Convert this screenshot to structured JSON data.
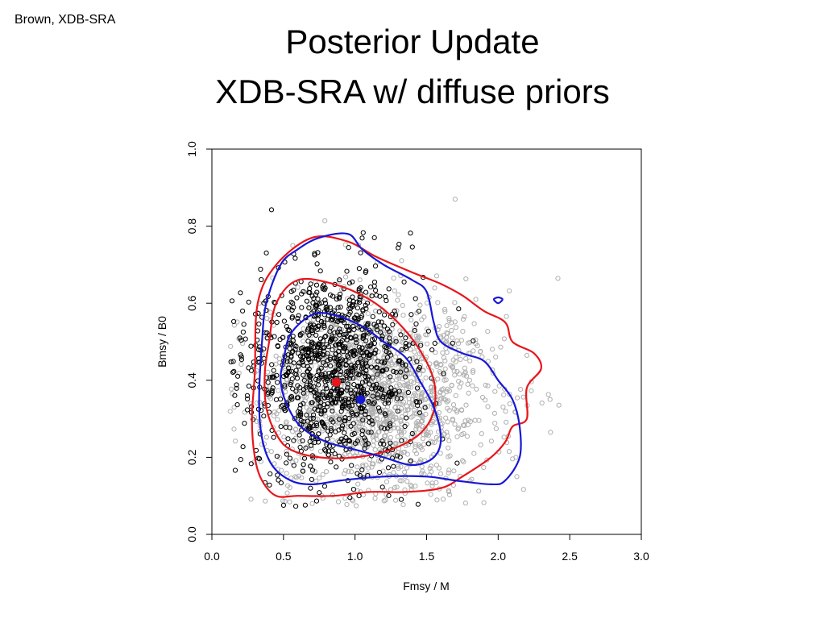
{
  "slide": {
    "corner_label": "Brown, XDB-SRA",
    "title_line1": "Posterior Update",
    "title_line2": "XDB-SRA w/ diffuse priors"
  },
  "chart_data": {
    "type": "scatter",
    "title": "",
    "xlabel": "Fmsy / M",
    "ylabel": "Bmsy / B0",
    "xlim": [
      0.0,
      3.0
    ],
    "ylim": [
      0.0,
      1.0
    ],
    "x_ticks": [
      "0.0",
      "0.5",
      "1.0",
      "1.5",
      "2.0",
      "2.5",
      "3.0"
    ],
    "y_ticks": [
      "0.0",
      "0.2",
      "0.4",
      "0.6",
      "0.8",
      "1.0"
    ],
    "grid": false,
    "legend": "none",
    "colors": {
      "black_points": "#000000",
      "gray_points": "#b0b0b0",
      "red": "#e8151b",
      "blue": "#1717d6"
    },
    "series": [
      {
        "kind": "scatter-cloud",
        "color": "#b0b0b0",
        "center": [
          1.2,
          0.36
        ],
        "spread": [
          0.42,
          0.13
        ],
        "count": 1400
      },
      {
        "kind": "scatter-cloud",
        "color": "#000000",
        "center": [
          0.85,
          0.42
        ],
        "spread": [
          0.3,
          0.13
        ],
        "count": 1100
      },
      {
        "kind": "contour",
        "color": "#e8151b",
        "level": "outer",
        "points": [
          [
            0.3,
            0.42
          ],
          [
            0.32,
            0.6
          ],
          [
            0.45,
            0.7
          ],
          [
            0.7,
            0.77
          ],
          [
            0.95,
            0.76
          ],
          [
            1.15,
            0.72
          ],
          [
            1.4,
            0.68
          ],
          [
            1.6,
            0.65
          ],
          [
            1.75,
            0.62
          ],
          [
            1.9,
            0.58
          ],
          [
            2.05,
            0.55
          ],
          [
            2.1,
            0.5
          ],
          [
            2.25,
            0.47
          ],
          [
            2.3,
            0.43
          ],
          [
            2.2,
            0.38
          ],
          [
            2.2,
            0.3
          ],
          [
            2.1,
            0.28
          ],
          [
            2.05,
            0.24
          ],
          [
            1.95,
            0.2
          ],
          [
            1.75,
            0.15
          ],
          [
            1.6,
            0.12
          ],
          [
            1.35,
            0.11
          ],
          [
            1.1,
            0.11
          ],
          [
            0.85,
            0.1
          ],
          [
            0.6,
            0.1
          ],
          [
            0.45,
            0.1
          ],
          [
            0.35,
            0.14
          ],
          [
            0.3,
            0.2
          ],
          [
            0.28,
            0.3
          ]
        ]
      },
      {
        "kind": "contour",
        "color": "#e8151b",
        "level": "inner",
        "points": [
          [
            0.4,
            0.5
          ],
          [
            0.45,
            0.6
          ],
          [
            0.6,
            0.66
          ],
          [
            0.85,
            0.65
          ],
          [
            1.1,
            0.61
          ],
          [
            1.3,
            0.55
          ],
          [
            1.45,
            0.48
          ],
          [
            1.55,
            0.4
          ],
          [
            1.55,
            0.32
          ],
          [
            1.45,
            0.26
          ],
          [
            1.25,
            0.22
          ],
          [
            1.0,
            0.2
          ],
          [
            0.75,
            0.2
          ],
          [
            0.55,
            0.22
          ],
          [
            0.45,
            0.26
          ],
          [
            0.38,
            0.33
          ],
          [
            0.37,
            0.42
          ]
        ]
      },
      {
        "kind": "contour",
        "color": "#1717d6",
        "level": "outer",
        "points": [
          [
            0.35,
            0.5
          ],
          [
            0.38,
            0.6
          ],
          [
            0.48,
            0.7
          ],
          [
            0.6,
            0.74
          ],
          [
            0.75,
            0.77
          ],
          [
            0.95,
            0.78
          ],
          [
            1.05,
            0.74
          ],
          [
            1.2,
            0.7
          ],
          [
            1.4,
            0.66
          ],
          [
            1.5,
            0.63
          ],
          [
            1.55,
            0.55
          ],
          [
            1.6,
            0.5
          ],
          [
            1.75,
            0.47
          ],
          [
            1.9,
            0.45
          ],
          [
            2.0,
            0.4
          ],
          [
            2.1,
            0.35
          ],
          [
            2.15,
            0.28
          ],
          [
            2.15,
            0.2
          ],
          [
            2.05,
            0.14
          ],
          [
            1.95,
            0.13
          ],
          [
            1.7,
            0.14
          ],
          [
            1.5,
            0.15
          ],
          [
            1.2,
            0.15
          ],
          [
            0.9,
            0.14
          ],
          [
            0.7,
            0.13
          ],
          [
            0.55,
            0.14
          ],
          [
            0.42,
            0.18
          ],
          [
            0.35,
            0.25
          ],
          [
            0.33,
            0.35
          ]
        ]
      },
      {
        "kind": "contour",
        "color": "#1717d6",
        "level": "inner",
        "points": [
          [
            0.5,
            0.45
          ],
          [
            0.55,
            0.52
          ],
          [
            0.7,
            0.57
          ],
          [
            0.85,
            0.57
          ],
          [
            1.05,
            0.54
          ],
          [
            1.2,
            0.5
          ],
          [
            1.35,
            0.46
          ],
          [
            1.45,
            0.4
          ],
          [
            1.55,
            0.33
          ],
          [
            1.6,
            0.25
          ],
          [
            1.55,
            0.2
          ],
          [
            1.4,
            0.18
          ],
          [
            1.2,
            0.2
          ],
          [
            1.0,
            0.22
          ],
          [
            0.8,
            0.24
          ],
          [
            0.62,
            0.28
          ],
          [
            0.52,
            0.34
          ],
          [
            0.48,
            0.4
          ]
        ]
      },
      {
        "kind": "contour",
        "color": "#1717d6",
        "level": "island",
        "points": [
          [
            1.97,
            0.61
          ],
          [
            2.0,
            0.615
          ],
          [
            2.03,
            0.61
          ],
          [
            2.0,
            0.6
          ]
        ]
      },
      {
        "kind": "marker",
        "color": "#e8151b",
        "x": 0.87,
        "y": 0.395
      },
      {
        "kind": "marker",
        "color": "#1717d6",
        "x": 1.04,
        "y": 0.35
      }
    ]
  }
}
